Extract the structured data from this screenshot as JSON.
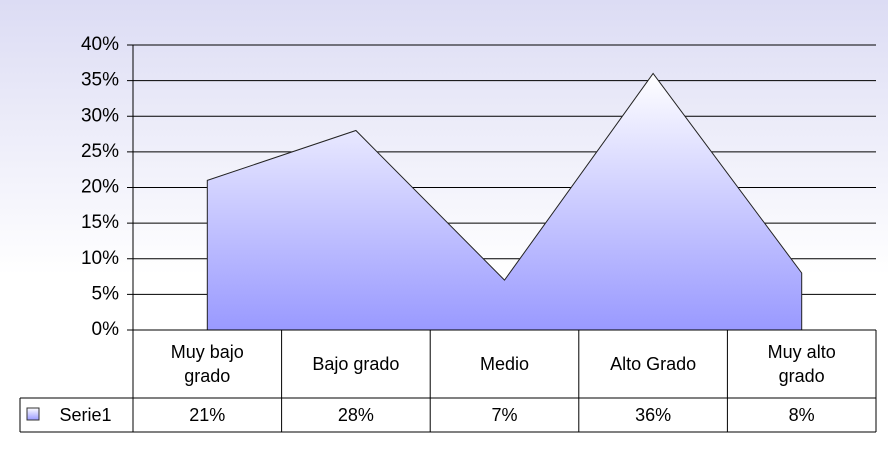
{
  "chart_data": {
    "type": "area",
    "categories": [
      "Muy bajo grado",
      "Bajo grado",
      "Medio",
      "Alto Grado",
      "Muy alto grado"
    ],
    "series": [
      {
        "name": "Serie1",
        "color": "#9999ff",
        "values": [
          21,
          28,
          7,
          36,
          8
        ],
        "value_labels": [
          "21%",
          "28%",
          "7%",
          "36%",
          "8%"
        ]
      }
    ],
    "ylim": [
      0,
      40
    ],
    "yticks": [
      {
        "value": 0,
        "label": "0%"
      },
      {
        "value": 5,
        "label": "5%"
      },
      {
        "value": 10,
        "label": "10%"
      },
      {
        "value": 15,
        "label": "15%"
      },
      {
        "value": 20,
        "label": "20%"
      },
      {
        "value": 25,
        "label": "25%"
      },
      {
        "value": 30,
        "label": "30%"
      },
      {
        "value": 35,
        "label": "35%"
      },
      {
        "value": 40,
        "label": "40%"
      }
    ],
    "grid": true,
    "data_table": true
  }
}
